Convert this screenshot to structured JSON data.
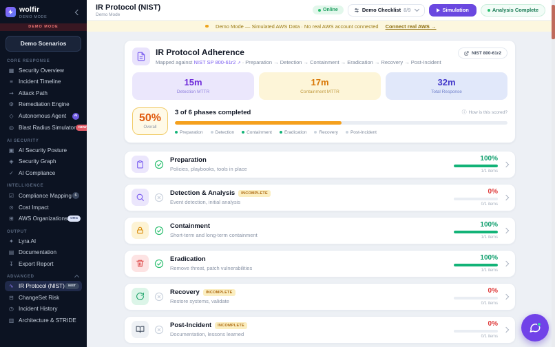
{
  "brand": {
    "name": "wolfir",
    "mode": "DEMO MODE",
    "demo_strip": "DEMO MODE"
  },
  "sidebar": {
    "demo_button": "Demo Scenarios",
    "sections": [
      {
        "label": "CORE RESPONSE",
        "items": [
          {
            "icon": "▦",
            "label": "Security Overview"
          },
          {
            "icon": "≡",
            "label": "Incident Timeline"
          },
          {
            "icon": "⇝",
            "label": "Attack Path"
          },
          {
            "icon": "⚙",
            "label": "Remediation Engine"
          },
          {
            "icon": "◇",
            "label": "Autonomous Agent",
            "badge": "AI"
          },
          {
            "icon": "◎",
            "label": "Blast Radius Simulator",
            "badge": "NEW"
          }
        ]
      },
      {
        "label": "AI SECURITY",
        "items": [
          {
            "icon": "▣",
            "label": "AI Security Posture"
          },
          {
            "icon": "◈",
            "label": "Security Graph"
          },
          {
            "icon": "✓",
            "label": "AI Compliance"
          }
        ]
      },
      {
        "label": "INTELLIGENCE",
        "items": [
          {
            "icon": "☑",
            "label": "Compliance Mapping",
            "badge": "6"
          },
          {
            "icon": "⊙",
            "label": "Cost Impact"
          },
          {
            "icon": "⊞",
            "label": "AWS Organizations",
            "badge": "ORG"
          }
        ]
      },
      {
        "label": "OUTPUT",
        "items": [
          {
            "icon": "✦",
            "label": "Lyra AI"
          },
          {
            "icon": "▤",
            "label": "Documentation"
          },
          {
            "icon": "↧",
            "label": "Export Report"
          }
        ]
      },
      {
        "label": "ADVANCED",
        "items": [
          {
            "icon": "∿",
            "label": "IR Protocol (NIST)",
            "badge": "NIST"
          },
          {
            "icon": "⊟",
            "label": "ChangeSet Risk"
          },
          {
            "icon": "◷",
            "label": "Incident History"
          },
          {
            "icon": "▥",
            "label": "Architecture & STRIDE"
          }
        ]
      }
    ]
  },
  "topbar": {
    "title": "IR Protocol (NIST)",
    "subtitle": "Demo Mode",
    "online_badge": "Online",
    "checklist_label": "Demo Checklist",
    "checklist_count": "8/9",
    "simulation_button": "Simulation",
    "analysis_badge": "Analysis Complete"
  },
  "banner": {
    "text": "Demo Mode — Simulated AWS Data · No real AWS account connected",
    "link": "Connect real AWS →"
  },
  "adherence": {
    "title": "IR Protocol Adherence",
    "subtitle_prefix": "Mapped against",
    "subtitle_link": "NIST SP 800-61r2",
    "subtitle_rest": "· Preparation → Detection → Containment → Eradication → Recovery → Post-Incident",
    "nist_badge": "NIST 800-61r2",
    "metrics": [
      {
        "value": "15m",
        "label": "Detection MTTR"
      },
      {
        "value": "17m",
        "label": "Containment MTTR"
      },
      {
        "value": "32m",
        "label": "Total Response"
      }
    ],
    "score": {
      "value": "50%",
      "label": "Overall",
      "phases_text": "3 of 6 phases completed",
      "progress_pct": 50,
      "help_icon": "ⓘ",
      "help": "How is this scored?"
    },
    "legend": [
      {
        "label": "Preparation",
        "done": true
      },
      {
        "label": "Detection",
        "done": false
      },
      {
        "label": "Containment",
        "done": true
      },
      {
        "label": "Eradication",
        "done": true
      },
      {
        "label": "Recovery",
        "done": false
      },
      {
        "label": "Post-Incident",
        "done": false
      }
    ]
  },
  "phases": [
    {
      "name": "Preparation",
      "desc": "Policies, playbooks, tools in place",
      "pct": "100%",
      "items": "1/1 items",
      "complete": true
    },
    {
      "name": "Detection & Analysis",
      "badge": "INCOMPLETE",
      "desc": "Event detection, initial analysis",
      "pct": "0%",
      "items": "0/1 items",
      "complete": false
    },
    {
      "name": "Containment",
      "desc": "Short-term and long-term containment",
      "pct": "100%",
      "items": "1/1 items",
      "complete": true
    },
    {
      "name": "Eradication",
      "desc": "Remove threat, patch vulnerabilities",
      "pct": "100%",
      "items": "1/1 items",
      "complete": true
    },
    {
      "name": "Recovery",
      "badge": "INCOMPLETE",
      "desc": "Restore systems, validate",
      "pct": "0%",
      "items": "0/1 items",
      "complete": false
    },
    {
      "name": "Post-Incident",
      "badge": "INCOMPLETE",
      "desc": "Documentation, lessons learned",
      "pct": "0%",
      "items": "0/1 items",
      "complete": false
    }
  ],
  "colors": {
    "accent_purple": "#7a5cf0",
    "success_green": "#12b377",
    "warning_amber": "#f5a01d",
    "danger_red": "#df3a3a",
    "sidebar_bg": "#0c1322"
  }
}
